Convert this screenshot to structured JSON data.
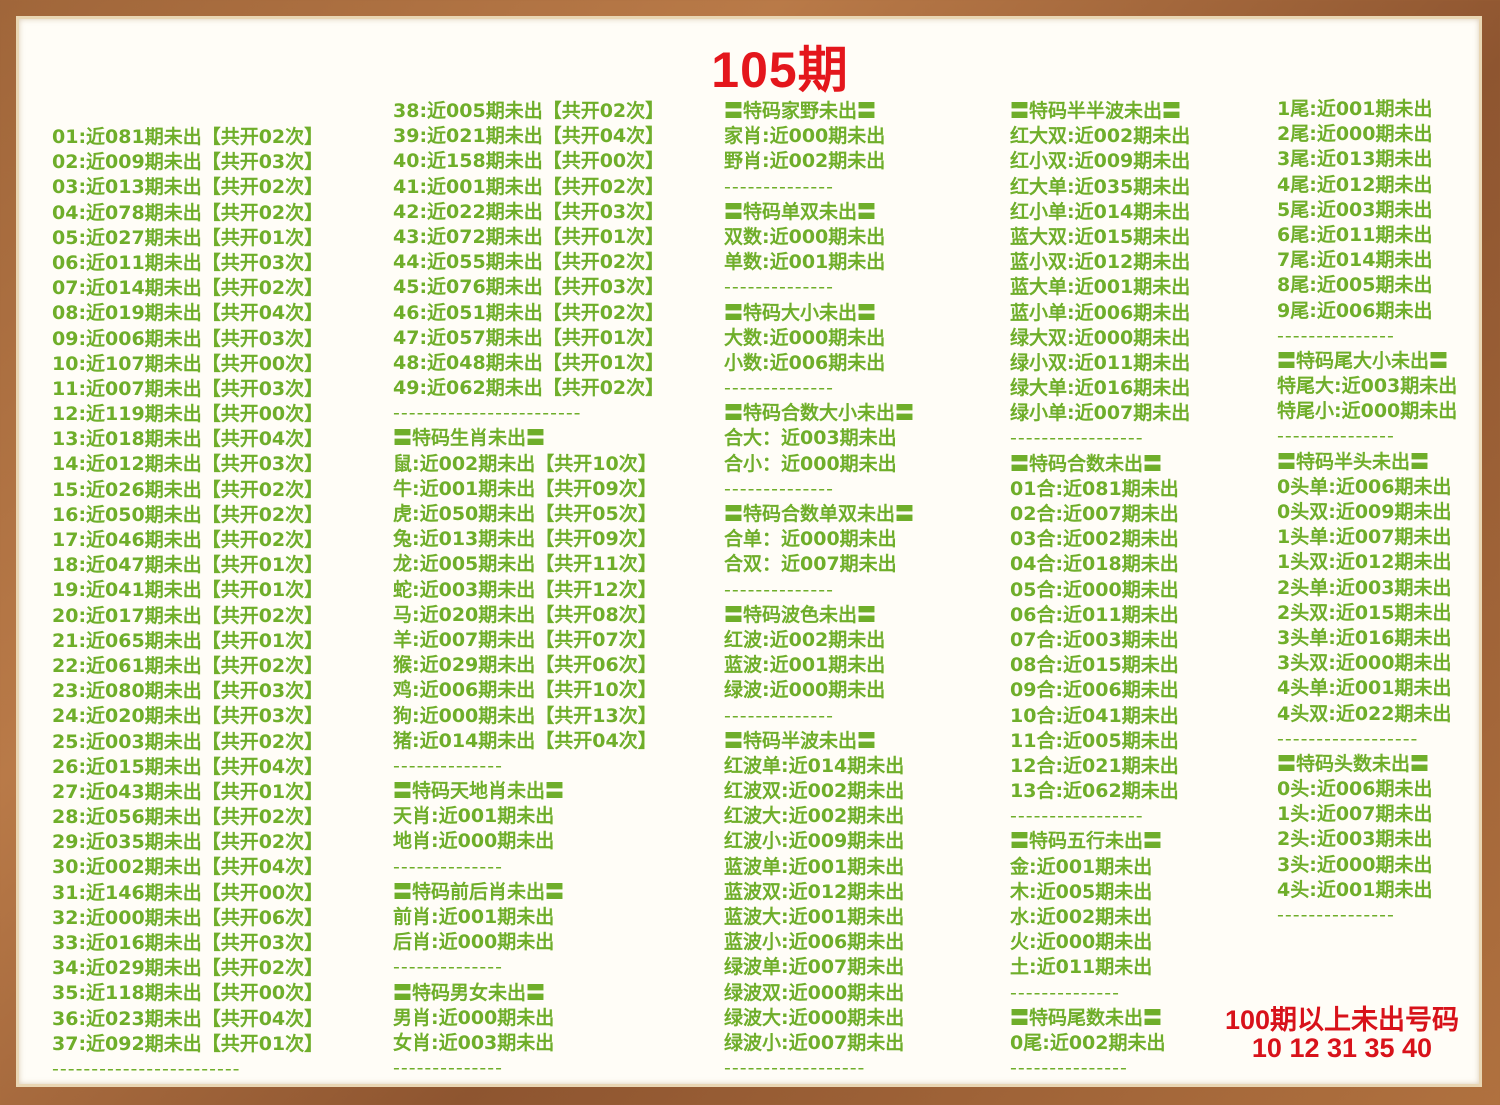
{
  "title": "105期",
  "footer": {
    "label": "100期以上未出号码",
    "numbers": "10 12 31 35 40"
  },
  "colors": {
    "text": "#6fae2a",
    "accent": "#e4161c"
  },
  "columns": [
    [
      "01:近081期未出【共开02次】",
      "02:近009期未出【共开03次】",
      "03:近013期未出【共开02次】",
      "04:近078期未出【共开02次】",
      "05:近027期未出【共开01次】",
      "06:近011期未出【共开03次】",
      "07:近014期未出【共开02次】",
      "08:近019期未出【共开04次】",
      "09:近006期未出【共开03次】",
      "10:近107期未出【共开00次】",
      "11:近007期未出【共开03次】",
      "12:近119期未出【共开00次】",
      "13:近018期未出【共开04次】",
      "14:近012期未出【共开03次】",
      "15:近026期未出【共开02次】",
      "16:近050期未出【共开02次】",
      "17:近046期未出【共开02次】",
      "18:近047期未出【共开01次】",
      "19:近041期未出【共开01次】",
      "20:近017期未出【共开02次】",
      "21:近065期未出【共开01次】",
      "22:近061期未出【共开02次】",
      "23:近080期未出【共开03次】",
      "24:近020期未出【共开03次】",
      "25:近003期未出【共开02次】",
      "26:近015期未出【共开04次】",
      "27:近043期未出【共开01次】",
      "28:近056期未出【共开02次】",
      "29:近035期未出【共开02次】",
      "30:近002期未出【共开04次】",
      "31:近146期未出【共开00次】",
      "32:近000期未出【共开06次】",
      "33:近016期未出【共开03次】",
      "34:近029期未出【共开02次】",
      "35:近118期未出【共开00次】",
      "36:近023期未出【共开04次】",
      "37:近092期未出【共开01次】",
      "------------------------"
    ],
    [
      "38:近005期未出【共开02次】",
      "39:近021期未出【共开04次】",
      "40:近158期未出【共开00次】",
      "41:近001期未出【共开02次】",
      "42:近022期未出【共开03次】",
      "43:近072期未出【共开01次】",
      "44:近055期未出【共开02次】",
      "45:近076期未出【共开03次】",
      "46:近051期未出【共开02次】",
      "47:近057期未出【共开01次】",
      "48:近048期未出【共开01次】",
      "49:近062期未出【共开02次】",
      "------------------------",
      "〓特码生肖未出〓",
      "鼠:近002期未出【共开10次】",
      "牛:近001期未出【共开09次】",
      "虎:近050期未出【共开05次】",
      "兔:近013期未出【共开09次】",
      "龙:近005期未出【共开11次】",
      "蛇:近003期未出【共开12次】",
      "马:近020期未出【共开08次】",
      "羊:近007期未出【共开07次】",
      "猴:近029期未出【共开06次】",
      "鸡:近006期未出【共开10次】",
      "狗:近000期未出【共开13次】",
      "猪:近014期未出【共开04次】",
      "--------------",
      "〓特码天地肖未出〓",
      "天肖:近001期未出",
      "地肖:近000期未出",
      "--------------",
      "〓特码前后肖未出〓",
      "前肖:近001期未出",
      "后肖:近000期未出",
      "--------------",
      "〓特码男女未出〓",
      "男肖:近000期未出",
      "女肖:近003期未出",
      "--------------"
    ],
    [
      "〓特码家野未出〓",
      "家肖:近000期未出",
      "野肖:近002期未出",
      "--------------",
      "〓特码单双未出〓",
      "双数:近000期未出",
      "单数:近001期未出",
      "--------------",
      "〓特码大小未出〓",
      "大数:近000期未出",
      "小数:近006期未出",
      "--------------",
      "〓特码合数大小未出〓",
      "合大：近003期未出",
      "合小：近000期未出",
      "--------------",
      "〓特码合数单双未出〓",
      "合单：近000期未出",
      "合双：近007期未出",
      "--------------",
      "〓特码波色未出〓",
      "红波:近002期未出",
      "蓝波:近001期未出",
      "绿波:近000期未出",
      "--------------",
      "〓特码半波未出〓",
      "红波单:近014期未出",
      "红波双:近002期未出",
      "红波大:近002期未出",
      "红波小:近009期未出",
      "蓝波单:近001期未出",
      "蓝波双:近012期未出",
      "蓝波大:近001期未出",
      "蓝波小:近006期未出",
      "绿波单:近007期未出",
      "绿波双:近000期未出",
      "绿波大:近000期未出",
      "绿波小:近007期未出",
      "------------------"
    ],
    [
      "〓特码半半波未出〓",
      "红大双:近002期未出",
      "红小双:近009期未出",
      "红大单:近035期未出",
      "红小单:近014期未出",
      "蓝大双:近015期未出",
      "蓝小双:近012期未出",
      "蓝大单:近001期未出",
      "蓝小单:近006期未出",
      "绿大双:近000期未出",
      "绿小双:近011期未出",
      "绿大单:近016期未出",
      "绿小单:近007期未出",
      "-----------------",
      "〓特码合数未出〓",
      "01合:近081期未出",
      "02合:近007期未出",
      "03合:近002期未出",
      "04合:近018期未出",
      "05合:近000期未出",
      "06合:近011期未出",
      "07合:近003期未出",
      "08合:近015期未出",
      "09合:近006期未出",
      "10合:近041期未出",
      "11合:近005期未出",
      "12合:近021期未出",
      "13合:近062期未出",
      "-----------------",
      "〓特码五行未出〓",
      "金:近001期未出",
      "木:近005期未出",
      "水:近002期未出",
      "火:近000期未出",
      "土:近011期未出",
      "--------------",
      "〓特码尾数未出〓",
      "0尾:近002期未出",
      "---------------"
    ],
    [
      "1尾:近001期未出",
      "2尾:近000期未出",
      "3尾:近013期未出",
      "4尾:近012期未出",
      "5尾:近003期未出",
      "6尾:近011期未出",
      "7尾:近014期未出",
      "8尾:近005期未出",
      "9尾:近006期未出",
      "---------------",
      "〓特码尾大小未出〓",
      "特尾大:近003期未出",
      "特尾小:近000期未出",
      "---------------",
      "〓特码半头未出〓",
      "0头单:近006期未出",
      "0头双:近009期未出",
      "1头单:近007期未出",
      "1头双:近012期未出",
      "2头单:近003期未出",
      "2头双:近015期未出",
      "3头单:近016期未出",
      "3头双:近000期未出",
      "4头单:近001期未出",
      "4头双:近022期未出",
      "------------------",
      "〓特码头数未出〓",
      "0头:近006期未出",
      "1头:近007期未出",
      "2头:近003期未出",
      "3头:近000期未出",
      "4头:近001期未出",
      "---------------"
    ]
  ]
}
